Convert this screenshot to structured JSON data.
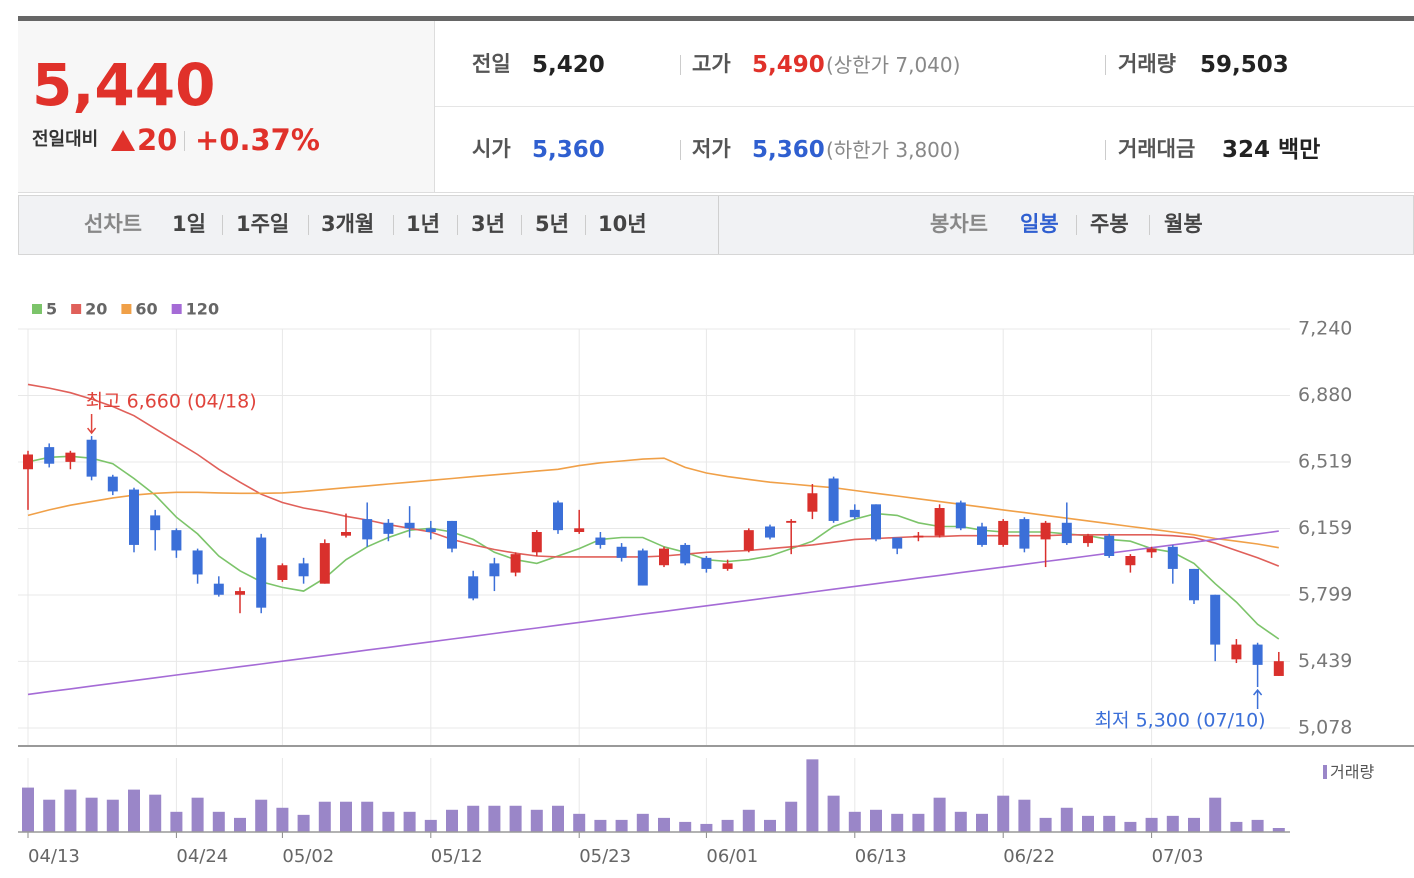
{
  "quote": {
    "price": "5,440",
    "change_label": "전일대비",
    "change": "20",
    "change_percent": "+0.37%",
    "stats": [
      {
        "label": "전일",
        "value": "5,420"
      },
      {
        "label": "고가",
        "value": "5,490",
        "note": "(상한가 7,040)"
      },
      {
        "label": "거래량",
        "value": "59,503"
      },
      {
        "label": "시가",
        "value": "5,360"
      },
      {
        "label": "저가",
        "value": "5,360",
        "note": "(하한가 3,800)"
      },
      {
        "label": "거래대금",
        "value": "324 백만"
      }
    ]
  },
  "tabs": {
    "line_label": "선차트",
    "line_periods": [
      "1일",
      "1주일",
      "3개월",
      "1년",
      "3년",
      "5년",
      "10년"
    ],
    "candle_label": "봉차트",
    "candle_periods": [
      "일봉",
      "주봉",
      "월봉"
    ],
    "active": "일봉"
  },
  "chart_data": [
    {
      "type": "candlestick",
      "categories": [
        "04/13",
        null,
        null,
        null,
        null,
        null,
        null,
        "04/24",
        null,
        null,
        null,
        null,
        "05/02",
        null,
        null,
        null,
        null,
        null,
        null,
        "05/12",
        null,
        null,
        null,
        null,
        null,
        null,
        "05/23",
        null,
        null,
        null,
        null,
        null,
        "06/01",
        null,
        null,
        null,
        null,
        null,
        null,
        "06/13",
        null,
        null,
        null,
        null,
        null,
        null,
        "06/22",
        null,
        null,
        null,
        null,
        null,
        null,
        "07/03",
        null,
        null,
        null,
        null,
        null,
        null
      ],
      "open": [
        6480,
        6600,
        6520,
        6640,
        6440,
        6370,
        6230,
        6150,
        6040,
        5860,
        5800,
        6110,
        5880,
        5970,
        5860,
        6120,
        6210,
        6190,
        6190,
        6160,
        6200,
        5900,
        5970,
        5920,
        6030,
        6300,
        6140,
        6110,
        6060,
        6040,
        5960,
        6070,
        6000,
        5940,
        6040,
        6170,
        6190,
        6250,
        6430,
        6260,
        6290,
        6110,
        6110,
        6120,
        6300,
        6170,
        6070,
        6210,
        6100,
        6190,
        6080,
        6120,
        5960,
        6030,
        6060,
        5940,
        5800,
        5450,
        5530,
        5360
      ],
      "high": [
        6580,
        6620,
        6580,
        6660,
        6450,
        6380,
        6260,
        6160,
        6050,
        5900,
        5840,
        6130,
        5970,
        6000,
        6100,
        6240,
        6300,
        6210,
        6280,
        6200,
        6200,
        5930,
        6000,
        6030,
        6150,
        6310,
        6260,
        6140,
        6080,
        6050,
        6060,
        6080,
        6010,
        5990,
        6160,
        6180,
        6210,
        6400,
        6440,
        6290,
        6290,
        6110,
        6140,
        6290,
        6310,
        6190,
        6210,
        6220,
        6200,
        6300,
        6130,
        6130,
        6020,
        6060,
        6070,
        5940,
        5800,
        5560,
        5540,
        5490
      ],
      "low": [
        6260,
        6490,
        6480,
        6420,
        6340,
        6030,
        6040,
        6000,
        5860,
        5790,
        5700,
        5700,
        5870,
        5860,
        5860,
        6110,
        6060,
        6090,
        6110,
        6100,
        6030,
        5770,
        5820,
        5900,
        6010,
        6130,
        6130,
        6050,
        5980,
        5850,
        5950,
        5960,
        5920,
        5930,
        6030,
        6100,
        6020,
        6210,
        6190,
        6210,
        6090,
        6020,
        6090,
        6110,
        6150,
        6060,
        6060,
        6030,
        5950,
        6070,
        6060,
        6000,
        5920,
        6000,
        5860,
        5750,
        5440,
        5430,
        5300,
        5360
      ],
      "close": [
        6560,
        6510,
        6570,
        6440,
        6360,
        6070,
        6150,
        6040,
        5910,
        5800,
        5820,
        5730,
        5960,
        5900,
        6080,
        6140,
        6100,
        6130,
        6160,
        6140,
        6050,
        5780,
        5900,
        6020,
        6140,
        6150,
        6160,
        6070,
        6000,
        5850,
        6050,
        5970,
        5940,
        5970,
        6150,
        6110,
        6200,
        6350,
        6200,
        6220,
        6100,
        6050,
        6120,
        6270,
        6160,
        6070,
        6200,
        6050,
        6190,
        6080,
        6120,
        6010,
        6010,
        6050,
        5940,
        5770,
        5530,
        5530,
        5420,
        5440
      ],
      "up_color": "#d9302c",
      "down_color": "#3b6fd8",
      "ylim": [
        5078,
        7240
      ],
      "yticks": [
        {
          "value": 7240,
          "label": "7,240"
        },
        {
          "value": 6880,
          "label": "6,880"
        },
        {
          "value": 6519,
          "label": "6,519"
        },
        {
          "value": 6159,
          "label": "6,159"
        },
        {
          "value": 5799,
          "label": "5,799"
        },
        {
          "value": 5439,
          "label": "5,439"
        },
        {
          "value": 5078,
          "label": "5,078"
        }
      ],
      "grid": true,
      "series": [
        {
          "name": "5",
          "color": "#7cc46a",
          "values": [
            6520,
            6545,
            6550,
            6540,
            6510,
            6430,
            6340,
            6220,
            6130,
            6010,
            5930,
            5870,
            5840,
            5820,
            5890,
            5990,
            6060,
            6110,
            6150,
            6160,
            6140,
            6100,
            6030,
            5990,
            5970,
            6010,
            6050,
            6100,
            6110,
            6110,
            6060,
            6030,
            5990,
            5980,
            5990,
            6010,
            6050,
            6090,
            6170,
            6210,
            6240,
            6230,
            6190,
            6170,
            6170,
            6150,
            6140,
            6140,
            6140,
            6130,
            6120,
            6100,
            6090,
            6050,
            6030,
            5970,
            5860,
            5760,
            5640,
            5560
          ]
        },
        {
          "name": "20",
          "color": "#e0605a",
          "values": [
            6940,
            6920,
            6895,
            6860,
            6820,
            6770,
            6700,
            6630,
            6560,
            6480,
            6410,
            6345,
            6300,
            6270,
            6250,
            6225,
            6205,
            6180,
            6160,
            6140,
            6100,
            6070,
            6045,
            6025,
            6010,
            6005,
            6005,
            6005,
            6005,
            6005,
            6010,
            6020,
            6030,
            6035,
            6040,
            6050,
            6060,
            6070,
            6085,
            6100,
            6105,
            6110,
            6115,
            6115,
            6120,
            6120,
            6120,
            6120,
            6120,
            6125,
            6125,
            6125,
            6125,
            6125,
            6120,
            6110,
            6080,
            6040,
            6000,
            5955
          ]
        },
        {
          "name": "60",
          "color": "#f0a048",
          "values": [
            6230,
            6260,
            6285,
            6305,
            6325,
            6340,
            6350,
            6355,
            6355,
            6352,
            6350,
            6350,
            6352,
            6360,
            6370,
            6380,
            6390,
            6400,
            6410,
            6420,
            6430,
            6440,
            6450,
            6460,
            6470,
            6480,
            6500,
            6515,
            6525,
            6535,
            6540,
            6490,
            6460,
            6440,
            6425,
            6410,
            6400,
            6390,
            6380,
            6365,
            6350,
            6335,
            6320,
            6305,
            6290,
            6275,
            6260,
            6245,
            6230,
            6215,
            6200,
            6185,
            6170,
            6155,
            6140,
            6125,
            6105,
            6090,
            6075,
            6055
          ]
        },
        {
          "name": "120",
          "color": "#a56bd6",
          "values": [
            5260,
            5275,
            5290,
            5305,
            5320,
            5335,
            5350,
            5365,
            5380,
            5395,
            5410,
            5425,
            5440,
            5455,
            5470,
            5485,
            5500,
            5515,
            5530,
            5545,
            5560,
            5575,
            5590,
            5605,
            5620,
            5635,
            5650,
            5665,
            5680,
            5695,
            5710,
            5725,
            5740,
            5755,
            5770,
            5785,
            5800,
            5815,
            5830,
            5845,
            5860,
            5875,
            5890,
            5905,
            5920,
            5935,
            5950,
            5965,
            5980,
            5995,
            6010,
            6025,
            6040,
            6055,
            6070,
            6085,
            6100,
            6115,
            6130,
            6145
          ]
        }
      ],
      "annotations": [
        {
          "text": "최고 6,660 (04/18)",
          "value": 6660
        },
        {
          "text": "최저 5,300 (07/10)",
          "value": 5300
        }
      ]
    },
    {
      "type": "bar",
      "legend": "거래량",
      "color": "#9a86c8",
      "ylim": [
        0,
        1100000
      ],
      "values": [
        660000,
        480000,
        630000,
        510000,
        480000,
        630000,
        555000,
        300000,
        510000,
        300000,
        210000,
        480000,
        360000,
        255000,
        450000,
        450000,
        450000,
        300000,
        300000,
        180000,
        330000,
        390000,
        390000,
        390000,
        330000,
        390000,
        270000,
        180000,
        180000,
        270000,
        210000,
        150000,
        120000,
        180000,
        330000,
        180000,
        450000,
        1080000,
        540000,
        300000,
        330000,
        270000,
        270000,
        510000,
        300000,
        270000,
        540000,
        480000,
        210000,
        360000,
        240000,
        240000,
        150000,
        210000,
        240000,
        210000,
        510000,
        150000,
        180000,
        59503
      ]
    }
  ]
}
